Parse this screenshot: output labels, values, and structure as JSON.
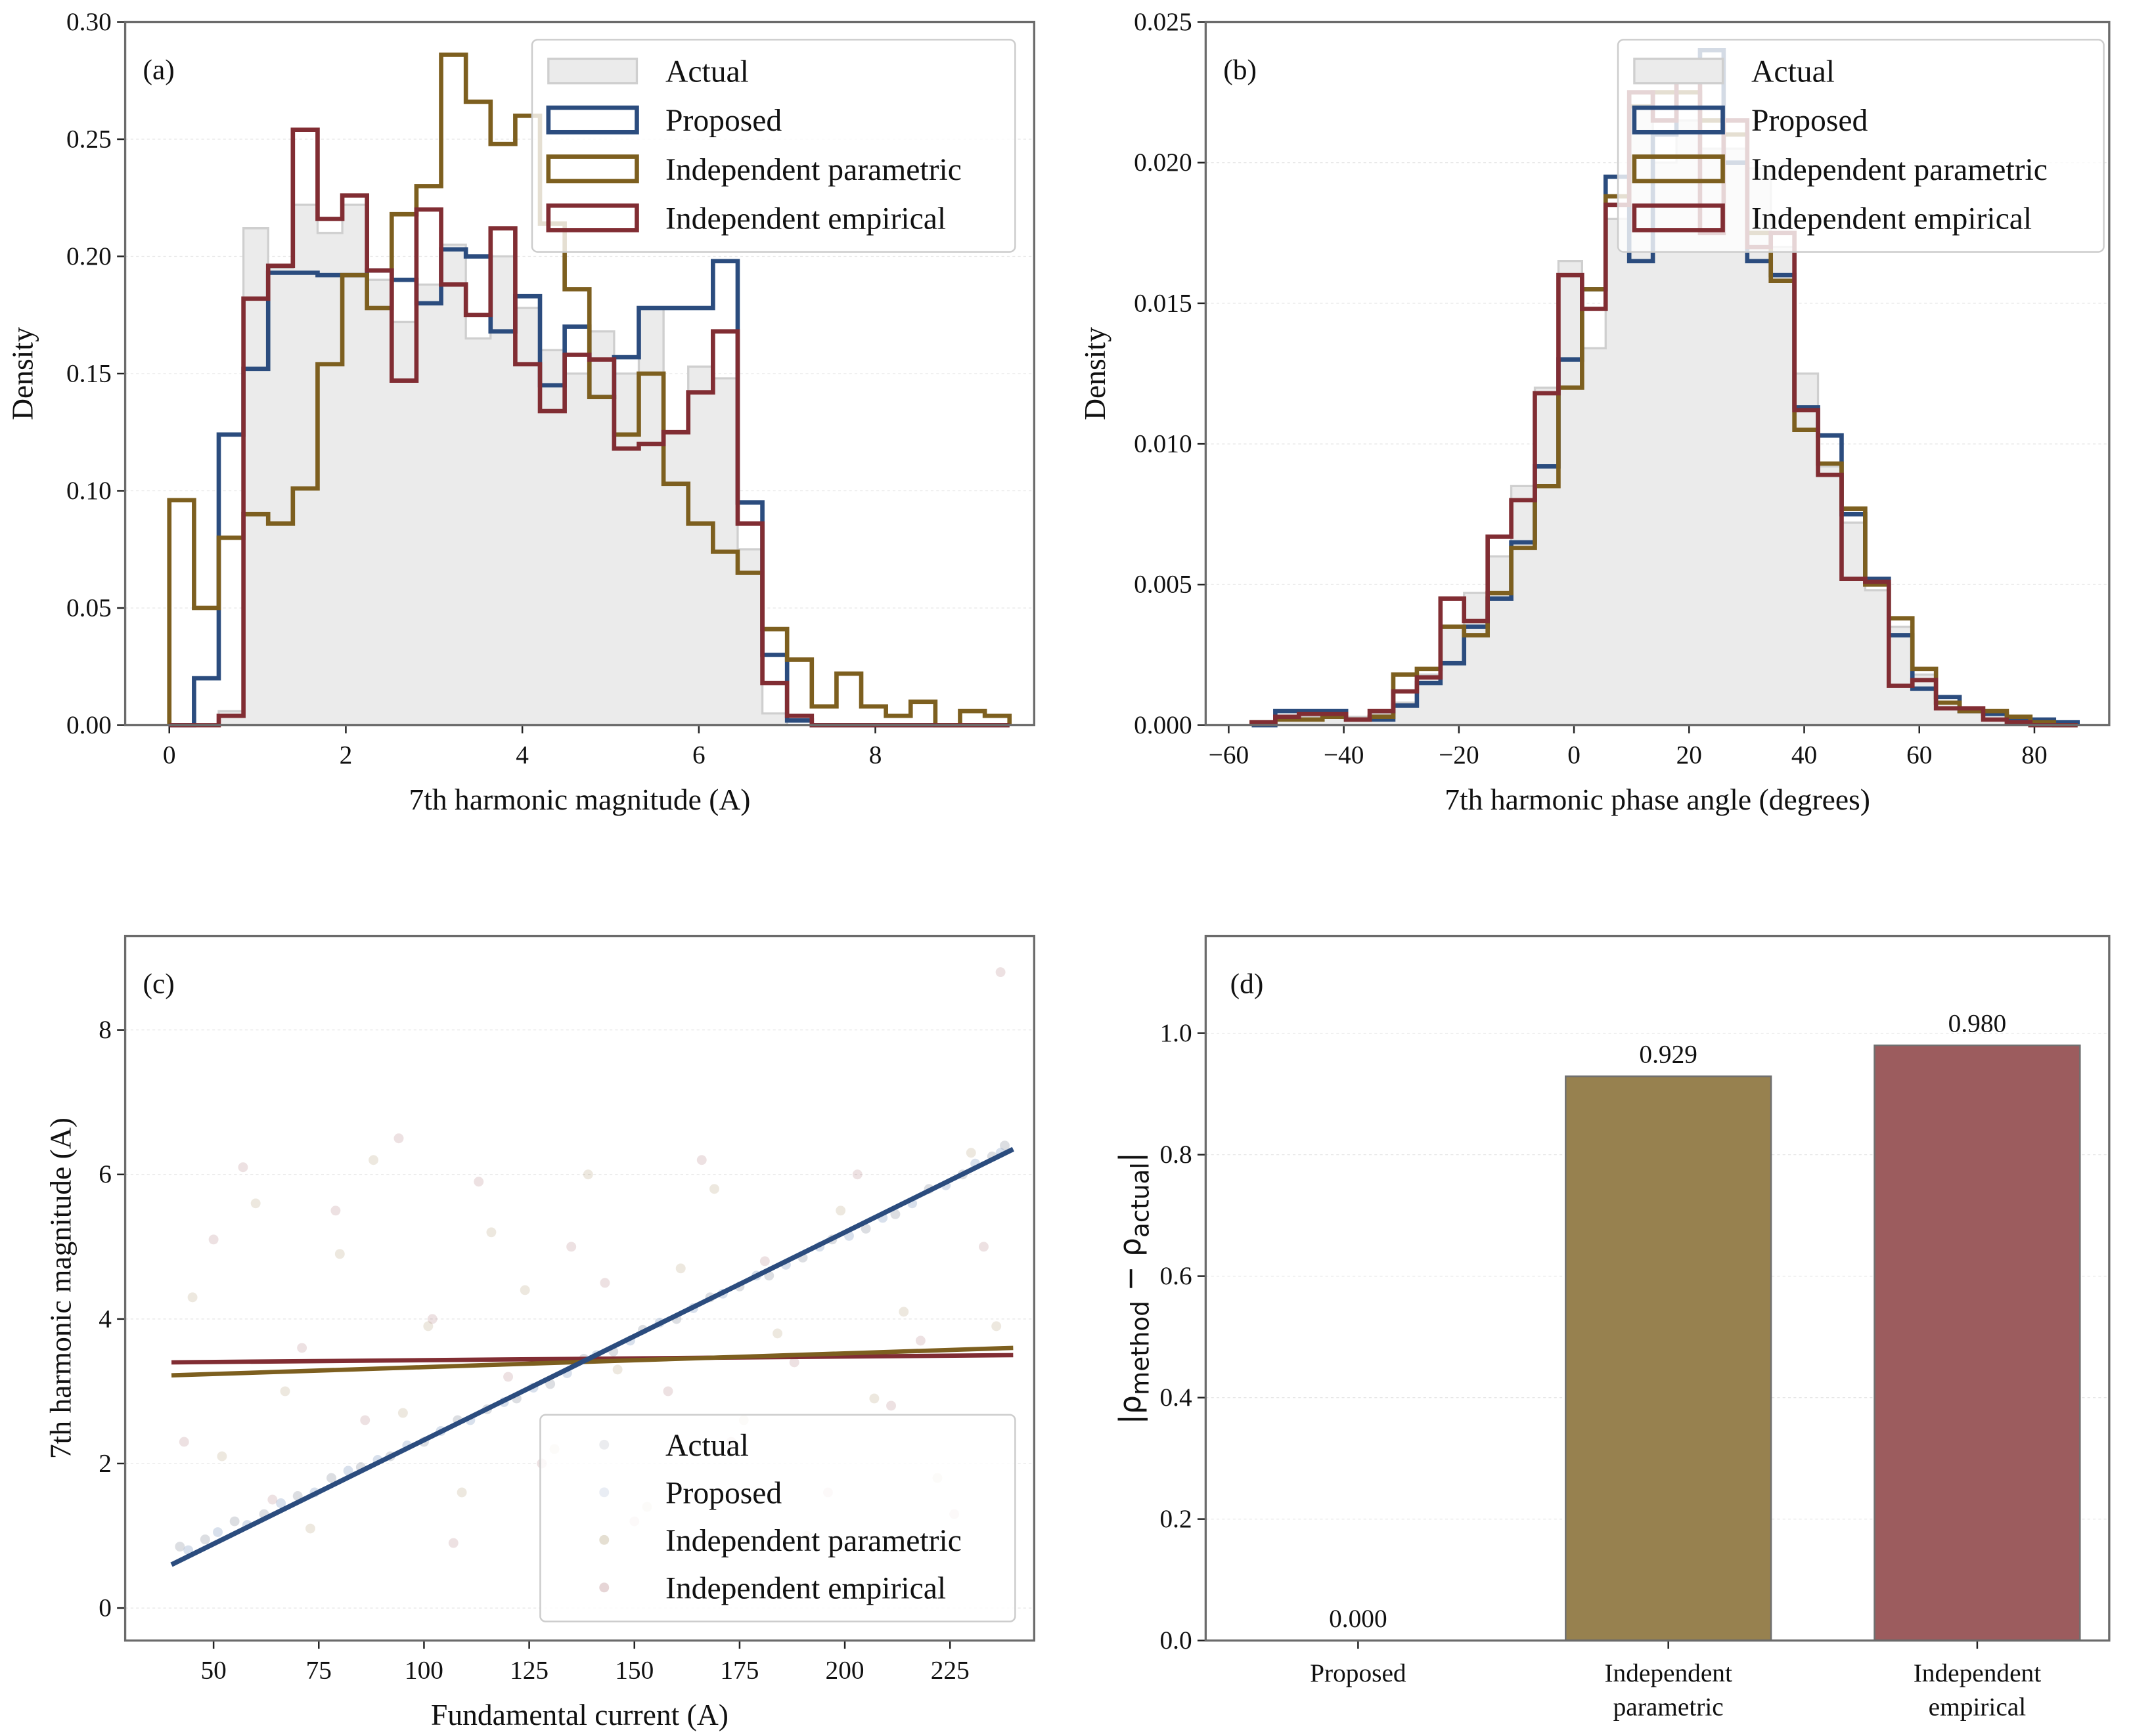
{
  "colors": {
    "actual_fill": "#ebebeb",
    "actual_edge": "#cfcfcf",
    "proposed": "#2b4c7e",
    "parametric": "#7d5f1f",
    "empirical": "#812d33",
    "bar_parametric": "#97814f",
    "bar_empirical": "#9c5c5e"
  },
  "chart_data": [
    {
      "panel": "(a)",
      "type": "bar",
      "subtype": "step-histogram",
      "xlabel": "7th harmonic magnitude (A)",
      "ylabel": "Density",
      "xlim": [
        -0.5,
        9.8
      ],
      "ylim": [
        0,
        0.3
      ],
      "xticks": [
        0,
        2,
        4,
        6,
        8
      ],
      "xtick_labels": [
        "0",
        "2",
        "4",
        "6",
        "8"
      ],
      "yticks": [
        0,
        0.05,
        0.1,
        0.15,
        0.2,
        0.25,
        0.3
      ],
      "ytick_labels": [
        "0.00",
        "0.05",
        "0.10",
        "0.15",
        "0.20",
        "0.25",
        "0.30"
      ],
      "legend": {
        "placement": "top-right",
        "entries": [
          "Actual",
          "Proposed",
          "Independent parametric",
          "Independent empirical"
        ]
      },
      "bin_start": 0,
      "bin_width": 0.28,
      "series": [
        {
          "name": "Actual",
          "values": [
            0,
            0,
            0.006,
            0.212,
            0.195,
            0.222,
            0.21,
            0.222,
            0.19,
            0.172,
            0.188,
            0.205,
            0.165,
            0.2,
            0.178,
            0.16,
            0.15,
            0.168,
            0.15,
            0.178,
            0.125,
            0.153,
            0.148,
            0.075,
            0.005,
            0,
            0,
            0,
            0,
            0,
            0,
            0,
            0,
            0
          ]
        },
        {
          "name": "Proposed",
          "values": [
            0,
            0.02,
            0.124,
            0.152,
            0.193,
            0.193,
            0.192,
            0.192,
            0.194,
            0.19,
            0.18,
            0.203,
            0.2,
            0.168,
            0.183,
            0.145,
            0.17,
            0.14,
            0.157,
            0.178,
            0.178,
            0.178,
            0.198,
            0.095,
            0.03,
            0.002,
            0,
            0,
            0,
            0,
            0,
            0,
            0,
            0
          ]
        },
        {
          "name": "Independent parametric",
          "values": [
            0.096,
            0.05,
            0.08,
            0.09,
            0.086,
            0.101,
            0.154,
            0.192,
            0.178,
            0.218,
            0.23,
            0.286,
            0.266,
            0.248,
            0.26,
            0.214,
            0.186,
            0.14,
            0.124,
            0.15,
            0.103,
            0.086,
            0.074,
            0.065,
            0.041,
            0.028,
            0.008,
            0.022,
            0.008,
            0.004,
            0.01,
            0,
            0.006,
            0.004
          ]
        },
        {
          "name": "Independent empirical",
          "values": [
            0,
            0,
            0.004,
            0.182,
            0.196,
            0.254,
            0.216,
            0.226,
            0.194,
            0.147,
            0.22,
            0.188,
            0.175,
            0.212,
            0.154,
            0.134,
            0.158,
            0.156,
            0.118,
            0.12,
            0.125,
            0.142,
            0.168,
            0.086,
            0.018,
            0.004,
            0,
            0,
            0,
            0,
            0,
            0,
            0,
            0
          ]
        }
      ]
    },
    {
      "panel": "(b)",
      "type": "bar",
      "subtype": "step-histogram",
      "xlabel": "7th harmonic phase angle (degrees)",
      "ylabel": "Density",
      "xlim": [
        -64,
        93
      ],
      "ylim": [
        0,
        0.025
      ],
      "xticks": [
        -60,
        -40,
        -20,
        0,
        20,
        40,
        60,
        80
      ],
      "xtick_labels": [
        "−60",
        "−40",
        "−20",
        "0",
        "20",
        "40",
        "60",
        "80"
      ],
      "yticks": [
        0,
        0.005,
        0.01,
        0.015,
        0.02,
        0.025
      ],
      "ytick_labels": [
        "0.000",
        "0.005",
        "0.010",
        "0.015",
        "0.020",
        "0.025"
      ],
      "legend": {
        "placement": "top-right",
        "entries": [
          "Actual",
          "Proposed",
          "Independent parametric",
          "Independent empirical"
        ]
      },
      "bin_start": -56,
      "bin_width": 4.1,
      "series": [
        {
          "name": "Actual",
          "values": [
            0,
            0.0002,
            0.0003,
            0.0003,
            0.0003,
            0.0004,
            0.0008,
            0.0018,
            0.0035,
            0.0047,
            0.006,
            0.0085,
            0.012,
            0.0165,
            0.0134,
            0.018,
            0.022,
            0.02,
            0.0215,
            0.0205,
            0.0205,
            0.0198,
            0.017,
            0.0125,
            0.0092,
            0.0072,
            0.0048,
            0.0035,
            0.0018,
            0.0008,
            0.0005,
            0.0004,
            0.0002,
            0.0001,
            0
          ]
        },
        {
          "name": "Proposed",
          "values": [
            0,
            0.0005,
            0.0005,
            0.0005,
            0.0002,
            0.0002,
            0.0007,
            0.0015,
            0.0022,
            0.0035,
            0.0045,
            0.0065,
            0.0092,
            0.013,
            0.0155,
            0.0195,
            0.0165,
            0.021,
            0.0235,
            0.024,
            0.02,
            0.0165,
            0.016,
            0.0113,
            0.0103,
            0.0075,
            0.0052,
            0.0032,
            0.0013,
            0.001,
            0.0005,
            0.0004,
            0.0002,
            0.0002,
            0.0001
          ]
        },
        {
          "name": "Independent parametric",
          "values": [
            0.0001,
            0.0002,
            0.0002,
            0.0003,
            0.0002,
            0.0003,
            0.0018,
            0.002,
            0.0035,
            0.0032,
            0.0047,
            0.0063,
            0.0085,
            0.012,
            0.0155,
            0.0188,
            0.022,
            0.0225,
            0.0225,
            0.0215,
            0.021,
            0.0175,
            0.0158,
            0.0105,
            0.0093,
            0.0077,
            0.005,
            0.0038,
            0.002,
            0.0008,
            0.0005,
            0.0005,
            0.0003,
            0.0001,
            0
          ]
        },
        {
          "name": "Independent empirical",
          "values": [
            0.0001,
            0.0003,
            0.0004,
            0.0004,
            0.0002,
            0.0005,
            0.0012,
            0.0017,
            0.0045,
            0.0037,
            0.0067,
            0.008,
            0.0118,
            0.016,
            0.0148,
            0.0185,
            0.0225,
            0.0215,
            0.0232,
            0.0175,
            0.0215,
            0.017,
            0.0175,
            0.0112,
            0.0089,
            0.0052,
            0.0051,
            0.0014,
            0.0016,
            0.0006,
            0.0006,
            0.0002,
            0.0001,
            0,
            0
          ]
        }
      ]
    },
    {
      "panel": "(c)",
      "type": "scatter",
      "xlabel": "Fundamental current (A)",
      "ylabel": "7th harmonic magnitude (A)",
      "xlim": [
        29,
        245
      ],
      "ylim": [
        -0.45,
        9.3
      ],
      "xticks": [
        50,
        75,
        100,
        125,
        150,
        175,
        200,
        225
      ],
      "xtick_labels": [
        "50",
        "75",
        "100",
        "125",
        "150",
        "175",
        "200",
        "225"
      ],
      "yticks": [
        0,
        2,
        4,
        6,
        8
      ],
      "ytick_labels": [
        "0",
        "2",
        "4",
        "6",
        "8"
      ],
      "legend": {
        "placement": "lower-right",
        "entries": [
          "Actual",
          "Proposed",
          "Independent parametric",
          "Independent empirical"
        ]
      },
      "series": [
        {
          "name": "Actual",
          "points": [
            [
              42,
              0.85
            ],
            [
              48,
              0.95
            ],
            [
              55,
              1.2
            ],
            [
              62,
              1.3
            ],
            [
              70,
              1.55
            ],
            [
              78,
              1.8
            ],
            [
              85,
              1.95
            ],
            [
              92,
              2.1
            ],
            [
              100,
              2.3
            ],
            [
              108,
              2.6
            ],
            [
              115,
              2.75
            ],
            [
              122,
              2.9
            ],
            [
              130,
              3.1
            ],
            [
              138,
              3.45
            ],
            [
              145,
              3.55
            ],
            [
              152,
              3.85
            ],
            [
              160,
              4.0
            ],
            [
              168,
              4.3
            ],
            [
              175,
              4.45
            ],
            [
              182,
              4.6
            ],
            [
              190,
              4.85
            ],
            [
              197,
              5.1
            ],
            [
              205,
              5.25
            ],
            [
              212,
              5.45
            ],
            [
              220,
              5.8
            ],
            [
              228,
              6.0
            ],
            [
              235,
              6.25
            ],
            [
              238,
              6.4
            ]
          ],
          "fit": [
            [
              40,
              0.6
            ],
            [
              240,
              6.35
            ]
          ]
        },
        {
          "name": "Proposed",
          "points": [
            [
              44,
              0.8
            ],
            [
              51,
              1.05
            ],
            [
              58,
              1.15
            ],
            [
              66,
              1.45
            ],
            [
              74,
              1.6
            ],
            [
              82,
              1.9
            ],
            [
              89,
              2.05
            ],
            [
              96,
              2.25
            ],
            [
              104,
              2.45
            ],
            [
              111,
              2.6
            ],
            [
              119,
              2.85
            ],
            [
              126,
              3.05
            ],
            [
              134,
              3.25
            ],
            [
              141,
              3.5
            ],
            [
              149,
              3.7
            ],
            [
              156,
              3.95
            ],
            [
              164,
              4.15
            ],
            [
              171,
              4.35
            ],
            [
              179,
              4.6
            ],
            [
              186,
              4.75
            ],
            [
              194,
              5.0
            ],
            [
              201,
              5.15
            ],
            [
              209,
              5.4
            ],
            [
              216,
              5.6
            ],
            [
              224,
              5.85
            ],
            [
              231,
              6.15
            ],
            [
              237,
              6.3
            ]
          ],
          "fit": [
            [
              40,
              0.6
            ],
            [
              240,
              6.35
            ]
          ]
        },
        {
          "name": "Independent parametric",
          "points": [
            [
              45,
              4.3
            ],
            [
              52,
              2.1
            ],
            [
              60,
              5.6
            ],
            [
              67,
              3.0
            ],
            [
              73,
              1.1
            ],
            [
              80,
              4.9
            ],
            [
              88,
              6.2
            ],
            [
              95,
              2.7
            ],
            [
              101,
              3.9
            ],
            [
              109,
              1.6
            ],
            [
              116,
              5.2
            ],
            [
              124,
              4.4
            ],
            [
              131,
              2.2
            ],
            [
              139,
              6.0
            ],
            [
              146,
              3.3
            ],
            [
              153,
              1.4
            ],
            [
              161,
              4.7
            ],
            [
              169,
              5.8
            ],
            [
              176,
              2.6
            ],
            [
              184,
              3.8
            ],
            [
              191,
              1.0
            ],
            [
              199,
              5.5
            ],
            [
              207,
              2.9
            ],
            [
              214,
              4.1
            ],
            [
              222,
              1.8
            ],
            [
              230,
              6.3
            ],
            [
              236,
              3.9
            ]
          ],
          "fit": [
            [
              40,
              3.22
            ],
            [
              240,
              3.6
            ]
          ]
        },
        {
          "name": "Independent empirical",
          "points": [
            [
              43,
              2.3
            ],
            [
              50,
              5.1
            ],
            [
              57,
              6.1
            ],
            [
              64,
              1.5
            ],
            [
              71,
              3.6
            ],
            [
              79,
              5.5
            ],
            [
              86,
              2.6
            ],
            [
              94,
              6.5
            ],
            [
              102,
              4.0
            ],
            [
              107,
              0.9
            ],
            [
              113,
              5.9
            ],
            [
              120,
              3.2
            ],
            [
              128,
              2.0
            ],
            [
              135,
              5.0
            ],
            [
              143,
              4.5
            ],
            [
              150,
              1.2
            ],
            [
              158,
              3.0
            ],
            [
              166,
              6.2
            ],
            [
              173,
              2.3
            ],
            [
              181,
              4.8
            ],
            [
              188,
              3.4
            ],
            [
              196,
              1.6
            ],
            [
              203,
              6.0
            ],
            [
              211,
              2.8
            ],
            [
              218,
              3.7
            ],
            [
              226,
              1.3
            ],
            [
              233,
              5.0
            ],
            [
              237,
              8.8
            ]
          ],
          "fit": [
            [
              40,
              3.4
            ],
            [
              240,
              3.5
            ]
          ]
        }
      ]
    },
    {
      "panel": "(d)",
      "type": "bar",
      "xlabel": "",
      "ylabel_main": "|ρ",
      "ylabel_sub1": "method",
      "ylabel_mid": " − ρ",
      "ylabel_sub2": "actual",
      "ylabel_end": "|",
      "ylim": [
        0,
        1.16
      ],
      "yticks": [
        0,
        0.2,
        0.4,
        0.6,
        0.8,
        1.0
      ],
      "ytick_labels": [
        "0.0",
        "0.2",
        "0.4",
        "0.6",
        "0.8",
        "1.0"
      ],
      "categories": [
        [
          "Proposed"
        ],
        [
          "Independent",
          "parametric"
        ],
        [
          "Independent",
          "empirical"
        ]
      ],
      "values": [
        0.0,
        0.929,
        0.98
      ],
      "value_labels": [
        "0.000",
        "0.929",
        "0.980"
      ]
    }
  ]
}
